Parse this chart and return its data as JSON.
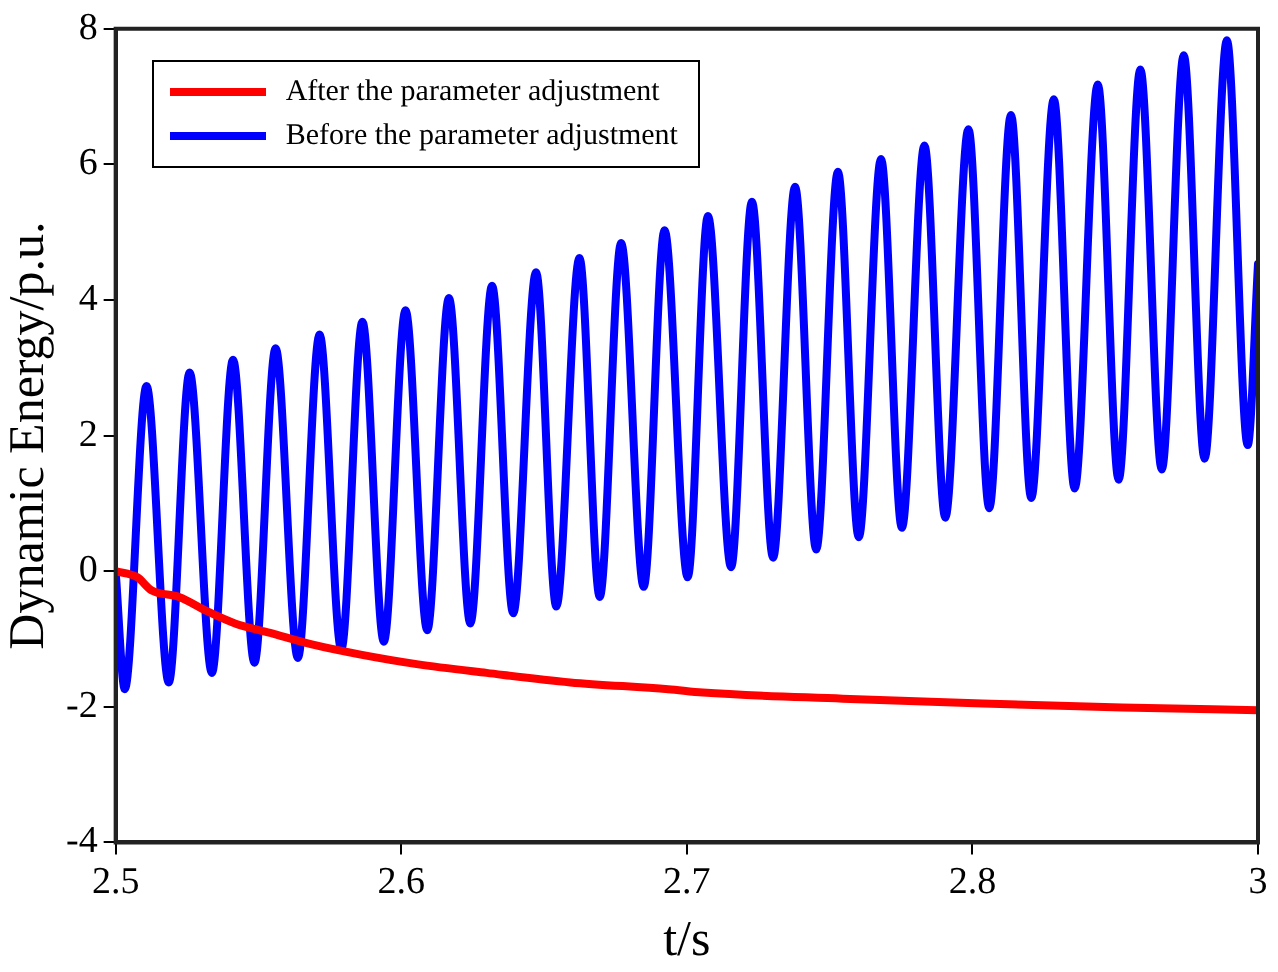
{
  "chart_data": {
    "type": "line",
    "xlabel": "t/s",
    "ylabel": "Dynamic Energy/p.u.",
    "xlim": [
      2.5,
      2.9
    ],
    "xticks": [
      2.5,
      2.6,
      2.7,
      2.8,
      {
        "value": 2.9,
        "label": "3"
      }
    ],
    "ylim": [
      -4,
      8
    ],
    "yticks": [
      -4,
      -2,
      0,
      2,
      4,
      6,
      8
    ],
    "grid": false,
    "legend": "top left",
    "marker": "none",
    "line_style": "solid",
    "series": [
      {
        "name": "After the parameter adjustment",
        "color": "#ff0000",
        "x": [
          2.5,
          2.5076,
          2.5125,
          2.5222,
          2.532,
          2.5418,
          2.5541,
          2.5687,
          2.5858,
          2.6054,
          2.6299,
          2.6592,
          2.6935,
          2.7056,
          2.7546,
          2.8035,
          2.8524,
          2.9
        ],
        "values": [
          0,
          -0.09,
          -0.28,
          -0.38,
          -0.59,
          -0.77,
          -0.91,
          -1.08,
          -1.23,
          -1.37,
          -1.5,
          -1.64,
          -1.74,
          -1.79,
          -1.88,
          -1.95,
          -2.01,
          -2.05
        ]
      },
      {
        "name": "Before the parameter adjustment",
        "color": "#0000ff",
        "x": [
          2.5,
          2.5032,
          2.5108,
          2.5186,
          2.5259,
          2.5337,
          2.5411,
          2.5486,
          2.556,
          2.5638,
          2.5714,
          2.579,
          2.5864,
          2.5939,
          2.6015,
          2.6091,
          2.6167,
          2.6242,
          2.6318,
          2.6392,
          2.6472,
          2.6543,
          2.6624,
          2.6695,
          2.677,
          2.6849,
          2.6922,
          2.7003,
          2.7074,
          2.7155,
          2.7228,
          2.7302,
          2.7379,
          2.7453,
          2.7529,
          2.7602,
          2.768,
          2.7753,
          2.7832,
          2.7905,
          2.7986,
          2.8059,
          2.8135,
          2.8206,
          2.8285,
          2.8358,
          2.8439,
          2.8512,
          2.8588,
          2.8663,
          2.874,
          2.8813,
          2.8891,
          2.8964,
          2.9
        ],
        "values": [
          0,
          -1.74,
          2.73,
          -1.64,
          2.93,
          -1.5,
          3.12,
          -1.35,
          3.29,
          -1.28,
          3.49,
          -1.15,
          3.68,
          -1.04,
          3.85,
          -0.87,
          4.03,
          -0.77,
          4.21,
          -0.62,
          4.41,
          -0.52,
          4.62,
          -0.38,
          4.84,
          -0.23,
          5.03,
          -0.09,
          5.24,
          0.06,
          5.45,
          0.2,
          5.67,
          0.32,
          5.89,
          0.5,
          6.08,
          0.64,
          6.28,
          0.79,
          6.52,
          0.93,
          6.73,
          1.08,
          6.96,
          1.22,
          7.18,
          1.35,
          7.4,
          1.5,
          7.61,
          1.66,
          7.83,
          1.86,
          4.53
        ]
      }
    ]
  }
}
